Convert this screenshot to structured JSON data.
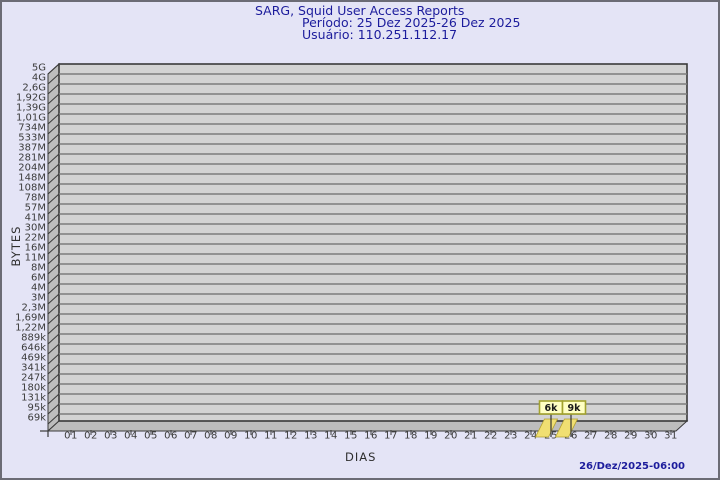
{
  "header": {
    "line1": "SARG, Squid User Access Reports",
    "line2": "Período: 25 Dez 2025-26 Dez 2025",
    "line3": "Usuário: 110.251.112.17"
  },
  "footer": {
    "timestamp": "26/Dez/2025-06:00"
  },
  "chart_data": {
    "type": "bar",
    "title": "SARG, Squid User Access Reports",
    "subtitle_period": "Período: 25 Dez 2025-26 Dez 2025",
    "subtitle_user": "Usuário: 110.251.112.17",
    "y_axis": {
      "label": "BYTES",
      "scale": "log",
      "tick_labels": [
        "5G",
        "4G",
        "2,6G",
        "1,92G",
        "1,39G",
        "1,01G",
        "734M",
        "533M",
        "387M",
        "281M",
        "204M",
        "148M",
        "108M",
        "78M",
        "57M",
        "41M",
        "30M",
        "22M",
        "16M",
        "11M",
        "8M",
        "6M",
        "4M",
        "3M",
        "2,3M",
        "1,69M",
        "1,22M",
        "889k",
        "646k",
        "469k",
        "341k",
        "247k",
        "180k",
        "131k",
        "95k",
        "69k"
      ]
    },
    "x_axis": {
      "label": "DIAS",
      "tick_labels": [
        "01",
        "02",
        "03",
        "04",
        "05",
        "06",
        "07",
        "08",
        "09",
        "10",
        "11",
        "12",
        "13",
        "14",
        "15",
        "16",
        "17",
        "18",
        "19",
        "20",
        "21",
        "22",
        "23",
        "24",
        "25",
        "26",
        "27",
        "28",
        "29",
        "30",
        "31"
      ]
    },
    "bars": [
      {
        "x": "25",
        "value_label": "6k",
        "value_bytes": 6000
      },
      {
        "x": "26",
        "value_label": "9k",
        "value_bytes": 9000
      }
    ],
    "legend": null,
    "grid": true,
    "colors": {
      "background": "#e4e4f6",
      "plot_face": "#d3d3d3",
      "grid_line": "#7c7c7c",
      "wall_fill": "#bdbdbd",
      "frame_line": "#3a3a3a",
      "bar_fill": "#f0df72",
      "bar_edge": "#b0a030",
      "bar_label_bg": "#ffffc4",
      "bar_label_border": "#a2a22e",
      "bar_label_text": "#1a1a1a",
      "title_text": "#1c1c9c",
      "axis_text": "#3c3c3c"
    }
  }
}
